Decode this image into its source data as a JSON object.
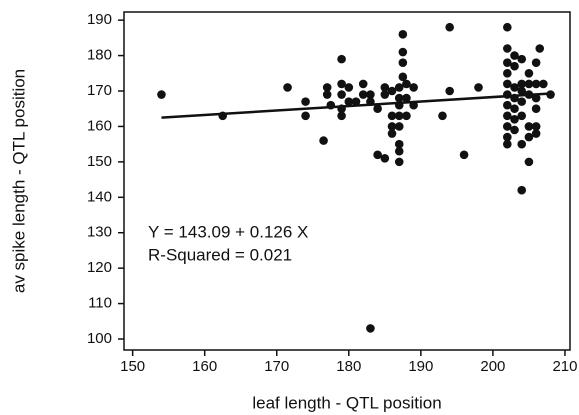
{
  "chart_data": {
    "type": "scatter",
    "x_label": "leaf length - QTL position",
    "y_label": "av spike length - QTL position",
    "annotations": [
      "Y = 143.09 + 0.126 X",
      "R-Squared = 0.021"
    ],
    "xlim": [
      148.8,
      210.7
    ],
    "ylim": [
      96.9,
      192.3
    ],
    "xticks": [
      150,
      160,
      170,
      180,
      190,
      200,
      210
    ],
    "yticks": [
      100,
      110,
      120,
      130,
      140,
      150,
      160,
      170,
      180,
      190
    ],
    "grid": false,
    "color": "#111111",
    "x": [
      154,
      162.5,
      171.5,
      174,
      174,
      176.5,
      177,
      177,
      177.5,
      179,
      179,
      179,
      179,
      179,
      180,
      180,
      181,
      182,
      182,
      183,
      183,
      183,
      184,
      184,
      185,
      185,
      185,
      186,
      186,
      186,
      186,
      187,
      187,
      187,
      187,
      187,
      187,
      187,
      187,
      187.5,
      187.5,
      187.5,
      187.5,
      188,
      188,
      188,
      189,
      189,
      193,
      194,
      194,
      196,
      198,
      202,
      202,
      202,
      202,
      202,
      202,
      202,
      202,
      202,
      202,
      202,
      203,
      203,
      203,
      203,
      203,
      203,
      203,
      204,
      204,
      204,
      204,
      204,
      204,
      204,
      205,
      205,
      205,
      205,
      205,
      205,
      206,
      206,
      206,
      206,
      206,
      206,
      206.5,
      207,
      208
    ],
    "values": [
      169,
      163,
      171,
      167,
      163,
      156,
      169,
      171,
      166,
      179,
      172,
      169,
      165,
      163,
      167,
      171,
      167,
      169,
      172,
      169,
      167,
      103,
      152,
      165,
      169,
      171,
      151,
      163,
      158,
      160,
      170,
      166,
      160,
      163,
      150,
      153,
      155,
      168,
      171,
      174,
      178,
      181,
      186,
      163,
      168,
      172,
      166,
      171,
      163,
      188,
      170,
      152,
      171,
      188,
      182,
      178,
      175,
      172,
      169,
      166,
      163,
      160,
      157,
      155,
      180,
      177,
      171,
      168,
      165,
      162,
      159,
      179,
      172,
      170,
      167,
      163,
      155,
      142,
      175,
      172,
      169,
      160,
      150,
      157,
      178,
      172,
      168,
      165,
      160,
      158,
      182,
      172,
      169
    ],
    "fit": {
      "x": [
        154,
        208
      ],
      "values": [
        162.49,
        169.3
      ]
    }
  }
}
